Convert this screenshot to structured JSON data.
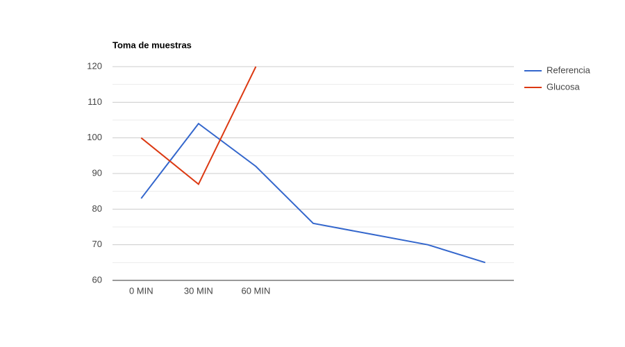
{
  "chart_data": {
    "type": "line",
    "title": "Toma de muestras",
    "categories": [
      "0 MIN",
      "30 MIN",
      "60 MIN",
      null,
      null,
      null,
      null
    ],
    "series": [
      {
        "name": "Referencia",
        "color": "#3366cc",
        "values": [
          83,
          104,
          92,
          76,
          73,
          70,
          65
        ]
      },
      {
        "name": "Glucosa",
        "color": "#dc3912",
        "values": [
          100,
          87,
          120,
          null,
          null,
          null,
          null
        ]
      }
    ],
    "ylim": [
      60,
      120
    ],
    "yticks": [
      60,
      70,
      80,
      90,
      100,
      110,
      120
    ],
    "grid": true,
    "legend": "right"
  }
}
